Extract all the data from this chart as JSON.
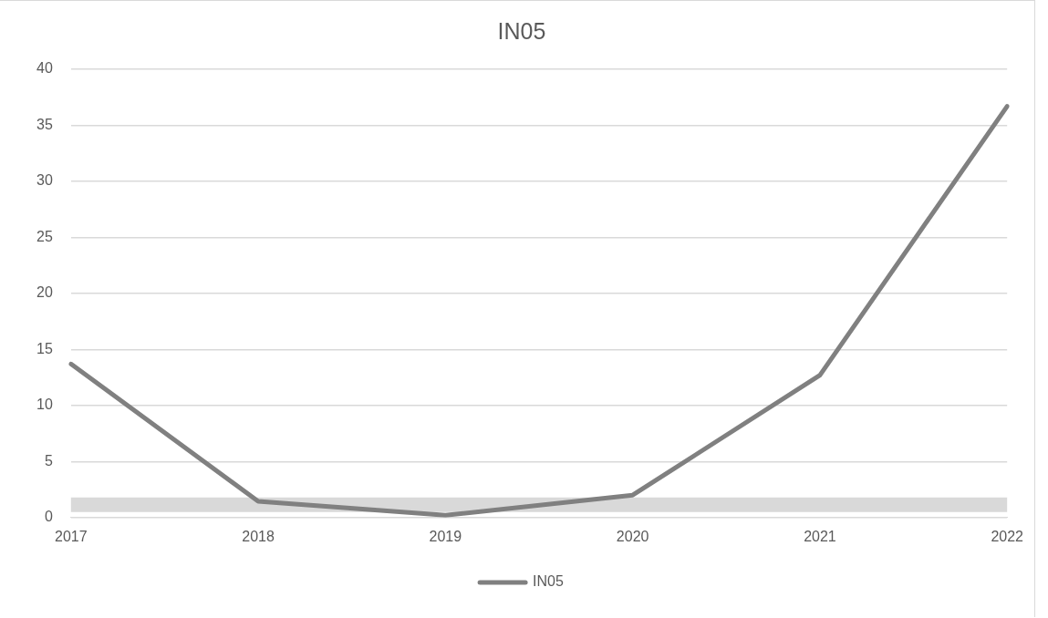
{
  "chart_data": {
    "type": "line",
    "title": "IN05",
    "categories": [
      "2017",
      "2018",
      "2019",
      "2020",
      "2021",
      "2022"
    ],
    "series": [
      {
        "name": "IN05",
        "color": "#808080",
        "values": [
          13.7,
          1.45,
          0.2,
          2.0,
          12.7,
          36.7
        ]
      }
    ],
    "ylim": [
      0,
      40
    ],
    "yticks": [
      0,
      5,
      10,
      15,
      20,
      25,
      30,
      35,
      40
    ],
    "grid": "y",
    "legend": "bottom",
    "marker": "none",
    "bands": [
      {
        "axis": "y",
        "from": 0.5,
        "to": 1.8,
        "color": "#d9d9d9"
      }
    ]
  }
}
